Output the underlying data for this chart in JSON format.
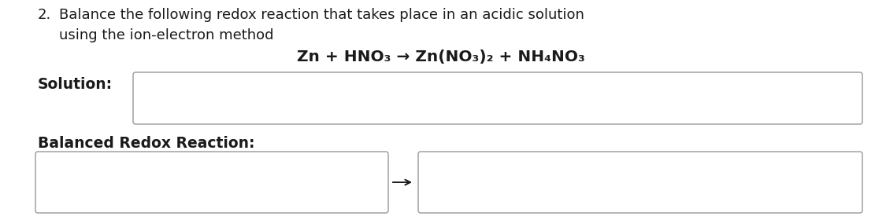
{
  "background_color": "#ffffff",
  "question_number": "2.",
  "question_text_line1": "Balance the following redox reaction that takes place in an acidic solution",
  "question_text_line2": "using the ion-electron method",
  "equation_text": "Zn + HNO₃ → Zn(NO₃)₂ + NH₄NO₃",
  "solution_label": "Solution:",
  "balanced_label": "Balanced Redox Reaction:",
  "text_color": "#1a1a1a",
  "box_edge_color": "#999999",
  "box_face_color": "#ffffff",
  "font_size_main": 13.0,
  "font_size_eq": 14.5,
  "font_size_bold": 13.5,
  "fig_width": 11.25,
  "fig_height": 2.8,
  "dpi": 100
}
